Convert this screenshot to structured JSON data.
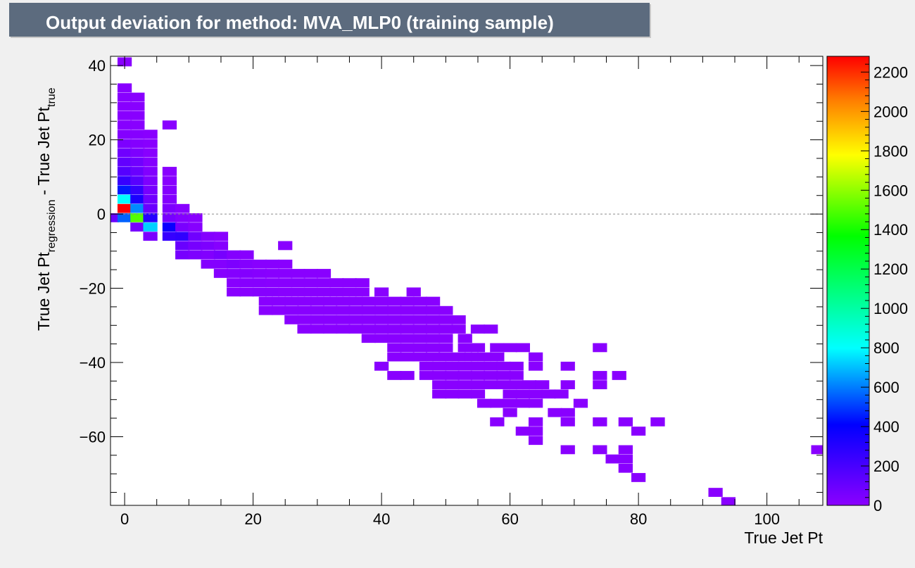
{
  "chart_data": {
    "type": "heatmap",
    "title": "Output deviation for method: MVA_MLP0 (training sample)",
    "xlabel": "True Jet Pt",
    "ylabel": {
      "main1": "True Jet Pt",
      "sub1": "regression",
      "main2": " - True Jet Pt",
      "sub2": "true"
    },
    "xlim": [
      -2.2,
      108.7
    ],
    "ylim": [
      -78.5,
      42.5
    ],
    "x_ticks": [
      0,
      20,
      40,
      60,
      80,
      100
    ],
    "y_ticks": [
      -60,
      -40,
      -20,
      0,
      20,
      40
    ],
    "bin_width_x": 2.22,
    "bin_height_y": 2.42,
    "z_range": [
      0,
      2280
    ],
    "z_ticks": [
      0,
      200,
      400,
      600,
      800,
      1000,
      1200,
      1400,
      1600,
      1800,
      2000,
      2200
    ],
    "reference_line_y": 0,
    "grid": false,
    "cells": [
      [
        0,
        41,
        5
      ],
      [
        0,
        34,
        5
      ],
      [
        0,
        31.5,
        8
      ],
      [
        2,
        31.5,
        5
      ],
      [
        0,
        29,
        10
      ],
      [
        2,
        29,
        8
      ],
      [
        0,
        26.5,
        10
      ],
      [
        2,
        26.5,
        8
      ],
      [
        0,
        24,
        15
      ],
      [
        2,
        24,
        10
      ],
      [
        7,
        24,
        5
      ],
      [
        0,
        21.5,
        20
      ],
      [
        2,
        21.5,
        15
      ],
      [
        4,
        21.5,
        5
      ],
      [
        0,
        19,
        40
      ],
      [
        2,
        19,
        20
      ],
      [
        4,
        19,
        8
      ],
      [
        0,
        16.5,
        80
      ],
      [
        2,
        16.5,
        40
      ],
      [
        4,
        16.5,
        10
      ],
      [
        0,
        14,
        120
      ],
      [
        2,
        14,
        80
      ],
      [
        4,
        14,
        20
      ],
      [
        0,
        11.5,
        160
      ],
      [
        2,
        11.5,
        100
      ],
      [
        4,
        11.5,
        30
      ],
      [
        7,
        11.5,
        5
      ],
      [
        0,
        9,
        250
      ],
      [
        2,
        9,
        150
      ],
      [
        4,
        9,
        40
      ],
      [
        7,
        9,
        10
      ],
      [
        0,
        6.5,
        450
      ],
      [
        2,
        6.5,
        250
      ],
      [
        4,
        6.5,
        60
      ],
      [
        7,
        6.5,
        20
      ],
      [
        0,
        4,
        800
      ],
      [
        2,
        4,
        330
      ],
      [
        4,
        4,
        80
      ],
      [
        7,
        4,
        25
      ],
      [
        0,
        1.5,
        2280
      ],
      [
        2,
        1.5,
        620
      ],
      [
        4,
        1.5,
        100
      ],
      [
        7,
        1.5,
        40
      ],
      [
        9,
        1.5,
        10
      ],
      [
        -2,
        -1,
        100
      ],
      [
        0,
        -1,
        560
      ],
      [
        2,
        -1,
        1500
      ],
      [
        4,
        -1,
        300
      ],
      [
        7,
        -1,
        60
      ],
      [
        9,
        -1,
        20
      ],
      [
        11,
        -1,
        5
      ],
      [
        2,
        -3.5,
        60
      ],
      [
        4,
        -3.5,
        730
      ],
      [
        7,
        -3.5,
        380
      ],
      [
        9,
        -3.5,
        50
      ],
      [
        11,
        -3.5,
        15
      ],
      [
        4,
        -6,
        50
      ],
      [
        7,
        -6,
        250
      ],
      [
        9,
        -6,
        270
      ],
      [
        11,
        -6,
        80
      ],
      [
        13,
        -6,
        20
      ],
      [
        15,
        -6,
        10
      ],
      [
        9,
        -8.5,
        100
      ],
      [
        11,
        -8.5,
        60
      ],
      [
        13,
        -8.5,
        40
      ],
      [
        15,
        -8.5,
        15
      ],
      [
        25,
        -8.5,
        5
      ],
      [
        9,
        -11,
        60
      ],
      [
        11,
        -11,
        40
      ],
      [
        13,
        -11,
        30
      ],
      [
        15,
        -11,
        60
      ],
      [
        17,
        -11,
        20
      ],
      [
        19,
        -11,
        10
      ],
      [
        13,
        -13.5,
        20
      ],
      [
        15,
        -13.5,
        20
      ],
      [
        17,
        -13.5,
        40
      ],
      [
        19,
        -13.5,
        20
      ],
      [
        21,
        -13.5,
        10
      ],
      [
        23,
        -13.5,
        10
      ],
      [
        25,
        -13.5,
        5
      ],
      [
        15,
        -16,
        15
      ],
      [
        17,
        -16,
        20
      ],
      [
        19,
        -16,
        25
      ],
      [
        21,
        -16,
        15
      ],
      [
        23,
        -16,
        10
      ],
      [
        25,
        -16,
        10
      ],
      [
        27,
        -16,
        5
      ],
      [
        29,
        -16,
        5
      ],
      [
        31,
        -16,
        5
      ],
      [
        17,
        -18.5,
        10
      ],
      [
        19,
        -18.5,
        15
      ],
      [
        21,
        -18.5,
        15
      ],
      [
        23,
        -18.5,
        10
      ],
      [
        25,
        -18.5,
        10
      ],
      [
        27,
        -18.5,
        10
      ],
      [
        29,
        -18.5,
        10
      ],
      [
        31,
        -18.5,
        10
      ],
      [
        33,
        -18.5,
        5
      ],
      [
        35,
        -18.5,
        5
      ],
      [
        37,
        -18.5,
        5
      ],
      [
        17,
        -21,
        5
      ],
      [
        19,
        -21,
        10
      ],
      [
        21,
        -21,
        15
      ],
      [
        23,
        -21,
        15
      ],
      [
        25,
        -21,
        10
      ],
      [
        27,
        -21,
        10
      ],
      [
        29,
        -21,
        10
      ],
      [
        31,
        -21,
        10
      ],
      [
        33,
        -21,
        10
      ],
      [
        35,
        -21,
        5
      ],
      [
        37,
        -21,
        5
      ],
      [
        40,
        -21,
        5
      ],
      [
        45,
        -21,
        5
      ],
      [
        22,
        -23.5,
        5
      ],
      [
        24,
        -23.5,
        10
      ],
      [
        26,
        -23.5,
        10
      ],
      [
        28,
        -23.5,
        10
      ],
      [
        30,
        -23.5,
        10
      ],
      [
        32,
        -23.5,
        10
      ],
      [
        34,
        -23.5,
        10
      ],
      [
        36,
        -23.5,
        10
      ],
      [
        38,
        -23.5,
        10
      ],
      [
        40,
        -23.5,
        5
      ],
      [
        42,
        -23.5,
        5
      ],
      [
        44,
        -23.5,
        5
      ],
      [
        46,
        -23.5,
        5
      ],
      [
        48,
        -23.5,
        5
      ],
      [
        22,
        -26,
        5
      ],
      [
        24,
        -26,
        5
      ],
      [
        26,
        -26,
        10
      ],
      [
        28,
        -26,
        10
      ],
      [
        30,
        -26,
        10
      ],
      [
        32,
        -26,
        10
      ],
      [
        34,
        -26,
        10
      ],
      [
        36,
        -26,
        10
      ],
      [
        38,
        -26,
        10
      ],
      [
        40,
        -26,
        10
      ],
      [
        42,
        -26,
        5
      ],
      [
        44,
        -26,
        5
      ],
      [
        46,
        -26,
        5
      ],
      [
        48,
        -26,
        5
      ],
      [
        50,
        -26,
        5
      ],
      [
        26,
        -28.5,
        5
      ],
      [
        28,
        -28.5,
        5
      ],
      [
        30,
        -28.5,
        10
      ],
      [
        32,
        -28.5,
        10
      ],
      [
        34,
        -28.5,
        10
      ],
      [
        36,
        -28.5,
        10
      ],
      [
        38,
        -28.5,
        10
      ],
      [
        40,
        -28.5,
        10
      ],
      [
        42,
        -28.5,
        10
      ],
      [
        44,
        -28.5,
        5
      ],
      [
        46,
        -28.5,
        5
      ],
      [
        48,
        -28.5,
        5
      ],
      [
        50,
        -28.5,
        5
      ],
      [
        52,
        -28.5,
        5
      ],
      [
        28,
        -31,
        5
      ],
      [
        30,
        -31,
        5
      ],
      [
        32,
        -31,
        5
      ],
      [
        34,
        -31,
        10
      ],
      [
        36,
        -31,
        10
      ],
      [
        38,
        -31,
        10
      ],
      [
        40,
        -31,
        10
      ],
      [
        42,
        -31,
        10
      ],
      [
        44,
        -31,
        5
      ],
      [
        46,
        -31,
        5
      ],
      [
        48,
        -31,
        5
      ],
      [
        50,
        -31,
        5
      ],
      [
        52,
        -31,
        5
      ],
      [
        55,
        -31,
        5
      ],
      [
        57,
        -31,
        5
      ],
      [
        38,
        -33.5,
        5
      ],
      [
        40,
        -33.5,
        5
      ],
      [
        42,
        -33.5,
        5
      ],
      [
        44,
        -33.5,
        5
      ],
      [
        46,
        -33.5,
        5
      ],
      [
        48,
        -33.5,
        5
      ],
      [
        50,
        -33.5,
        5
      ],
      [
        53,
        -33.5,
        5
      ],
      [
        42,
        -36,
        5
      ],
      [
        44,
        -36,
        5
      ],
      [
        46,
        -36,
        5
      ],
      [
        48,
        -36,
        5
      ],
      [
        50,
        -36,
        5
      ],
      [
        53,
        -36,
        5
      ],
      [
        55,
        -36,
        5
      ],
      [
        58,
        -36,
        5
      ],
      [
        60,
        -36,
        5
      ],
      [
        62,
        -36,
        5
      ],
      [
        74,
        -36,
        5
      ],
      [
        42,
        -38.5,
        5
      ],
      [
        44,
        -38.5,
        5
      ],
      [
        46,
        -38.5,
        5
      ],
      [
        48,
        -38.5,
        5
      ],
      [
        50,
        -38.5,
        5
      ],
      [
        52,
        -38.5,
        5
      ],
      [
        54,
        -38.5,
        5
      ],
      [
        56,
        -38.5,
        5
      ],
      [
        58,
        -38.5,
        5
      ],
      [
        64,
        -38.5,
        5
      ],
      [
        40,
        -41,
        5
      ],
      [
        47,
        -41,
        5
      ],
      [
        49,
        -41,
        5
      ],
      [
        51,
        -41,
        5
      ],
      [
        53,
        -41,
        5
      ],
      [
        55,
        -41,
        5
      ],
      [
        57,
        -41,
        5
      ],
      [
        59,
        -41,
        5
      ],
      [
        61,
        -41,
        5
      ],
      [
        64,
        -41,
        5
      ],
      [
        69,
        -41,
        5
      ],
      [
        42,
        -43.5,
        5
      ],
      [
        44,
        -43.5,
        5
      ],
      [
        47,
        -43.5,
        5
      ],
      [
        49,
        -43.5,
        5
      ],
      [
        51,
        -43.5,
        5
      ],
      [
        53,
        -43.5,
        5
      ],
      [
        55,
        -43.5,
        5
      ],
      [
        57,
        -43.5,
        5
      ],
      [
        59,
        -43.5,
        5
      ],
      [
        61,
        -43.5,
        5
      ],
      [
        74,
        -43.5,
        5
      ],
      [
        77,
        -43.5,
        5
      ],
      [
        49,
        -46,
        5
      ],
      [
        51,
        -46,
        5
      ],
      [
        53,
        -46,
        5
      ],
      [
        55,
        -46,
        5
      ],
      [
        57,
        -46,
        5
      ],
      [
        59,
        -46,
        5
      ],
      [
        61,
        -46,
        5
      ],
      [
        63,
        -46,
        5
      ],
      [
        65,
        -46,
        5
      ],
      [
        69,
        -46,
        5
      ],
      [
        74,
        -46,
        5
      ],
      [
        49,
        -48.5,
        5
      ],
      [
        51,
        -48.5,
        5
      ],
      [
        53,
        -48.5,
        5
      ],
      [
        55,
        -48.5,
        5
      ],
      [
        60,
        -48.5,
        5
      ],
      [
        62,
        -48.5,
        5
      ],
      [
        64,
        -48.5,
        5
      ],
      [
        66,
        -48.5,
        5
      ],
      [
        68,
        -48.5,
        5
      ],
      [
        56,
        -51,
        5
      ],
      [
        58,
        -51,
        5
      ],
      [
        60,
        -51,
        5
      ],
      [
        62,
        -51,
        5
      ],
      [
        64,
        -51,
        5
      ],
      [
        71,
        -51,
        5
      ],
      [
        60,
        -53.5,
        5
      ],
      [
        67,
        -53.5,
        5
      ],
      [
        69,
        -53.5,
        5
      ],
      [
        58,
        -56,
        5
      ],
      [
        64,
        -56,
        5
      ],
      [
        69,
        -56,
        5
      ],
      [
        74,
        -56,
        5
      ],
      [
        78,
        -56,
        5
      ],
      [
        83,
        -56,
        5
      ],
      [
        62,
        -58.5,
        5
      ],
      [
        64,
        -58.5,
        5
      ],
      [
        80,
        -58.5,
        5
      ],
      [
        64,
        -61,
        5
      ],
      [
        69,
        -63.5,
        5
      ],
      [
        74,
        -63.5,
        5
      ],
      [
        78,
        -63.5,
        5
      ],
      [
        108,
        -63.5,
        5
      ],
      [
        76,
        -66,
        5
      ],
      [
        78,
        -66,
        5
      ],
      [
        78,
        -68.5,
        5
      ],
      [
        80,
        -71,
        5
      ],
      [
        92,
        -75,
        5
      ],
      [
        94,
        -77.5,
        5
      ]
    ]
  }
}
